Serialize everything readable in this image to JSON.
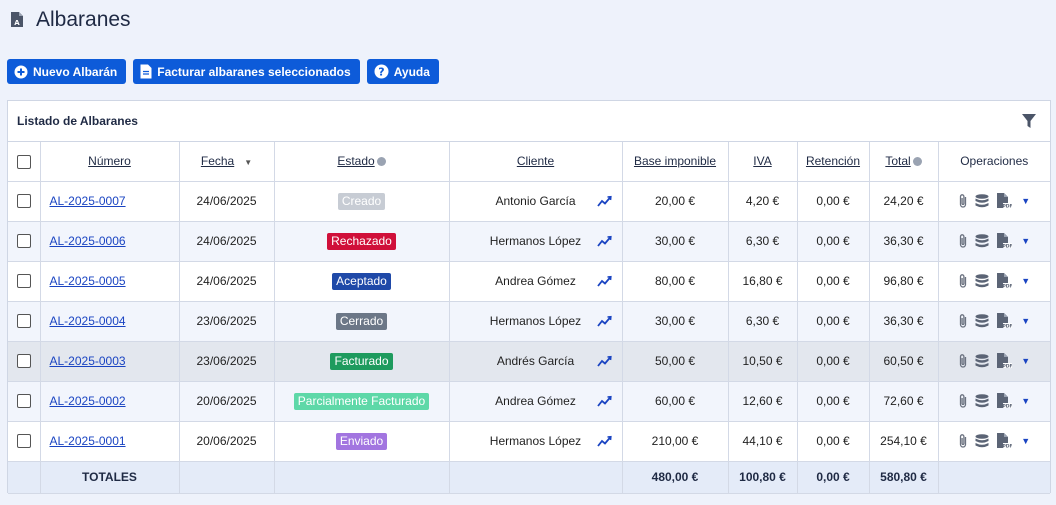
{
  "page": {
    "title": "Albaranes"
  },
  "toolbar": {
    "new_label": "Nuevo Albarán",
    "invoice_label": "Facturar albaranes seleccionados",
    "help_label": "Ayuda"
  },
  "panel": {
    "title": "Listado de Albaranes"
  },
  "columns": {
    "numero": "Número",
    "fecha": "Fecha",
    "estado": "Estado",
    "cliente": "Cliente",
    "base": "Base imponible",
    "iva": "IVA",
    "retencion": "Retención",
    "total": "Total",
    "operaciones": "Operaciones"
  },
  "rows": [
    {
      "numero": "AL-2025-0007",
      "fecha": "24/06/2025",
      "estado": "Creado",
      "estado_color": "#c7ccd4",
      "cliente": "Antonio García",
      "base": "20,00 €",
      "iva": "4,20 €",
      "retencion": "0,00 €",
      "total": "24,20 €"
    },
    {
      "numero": "AL-2025-0006",
      "fecha": "24/06/2025",
      "estado": "Rechazado",
      "estado_color": "#d0103a",
      "cliente": "Hermanos López",
      "base": "30,00 €",
      "iva": "6,30 €",
      "retencion": "0,00 €",
      "total": "36,30 €"
    },
    {
      "numero": "AL-2025-0005",
      "fecha": "24/06/2025",
      "estado": "Aceptado",
      "estado_color": "#1f49a8",
      "cliente": "Andrea Gómez",
      "base": "80,00 €",
      "iva": "16,80 €",
      "retencion": "0,00 €",
      "total": "96,80 €"
    },
    {
      "numero": "AL-2025-0004",
      "fecha": "23/06/2025",
      "estado": "Cerrado",
      "estado_color": "#6c7787",
      "cliente": "Hermanos López",
      "base": "30,00 €",
      "iva": "6,30 €",
      "retencion": "0,00 €",
      "total": "36,30 €"
    },
    {
      "numero": "AL-2025-0003",
      "fecha": "23/06/2025",
      "estado": "Facturado",
      "estado_color": "#1e9b5e",
      "cliente": "Andrés García",
      "base": "50,00 €",
      "iva": "10,50 €",
      "retencion": "0,00 €",
      "total": "60,50 €"
    },
    {
      "numero": "AL-2025-0002",
      "fecha": "20/06/2025",
      "estado": "Parcialmente Facturado",
      "estado_color": "#5ed8a8",
      "cliente": "Andrea Gómez",
      "base": "60,00 €",
      "iva": "12,60 €",
      "retencion": "0,00 €",
      "total": "72,60 €"
    },
    {
      "numero": "AL-2025-0001",
      "fecha": "20/06/2025",
      "estado": "Enviado",
      "estado_color": "#a275e0",
      "cliente": "Hermanos López",
      "base": "210,00 €",
      "iva": "44,10 €",
      "retencion": "0,00 €",
      "total": "254,10 €"
    }
  ],
  "totals": {
    "label": "TOTALES",
    "base": "480,00 €",
    "iva": "100,80 €",
    "retencion": "0,00 €",
    "total": "580,80 €"
  },
  "icons": {
    "title": "document-a-icon",
    "new": "plus-circle-icon",
    "invoice": "document-icon",
    "help": "question-circle-icon",
    "filter": "filter-icon",
    "trend": "trend-up-icon",
    "attach": "paperclip-icon",
    "db": "database-icon",
    "pdf": "pdf-icon",
    "more": "caret-down-icon"
  },
  "colors": {
    "accent": "#0d5bd9",
    "link": "#1a44c2"
  }
}
